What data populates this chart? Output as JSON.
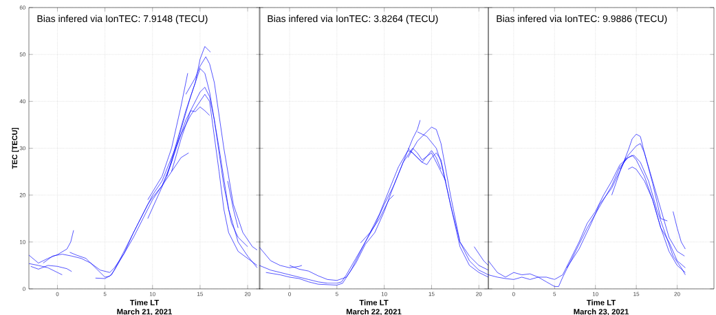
{
  "chart_data": [
    {
      "type": "line",
      "xlabel": "Time LT",
      "ylabel": "TEC [TECU]",
      "annotations": [
        "Bias infered via IonTEC: 7.9148 (TECU)",
        "March 21, 2021"
      ],
      "xlim": [
        -3,
        21.3
      ],
      "ylim": [
        0,
        60
      ],
      "xticks": [
        0,
        5,
        10,
        15,
        20
      ],
      "yticks": [
        0,
        10,
        20,
        30,
        40,
        50,
        60
      ],
      "grid": true,
      "marker": "none",
      "line_style": "solid",
      "series": [
        {
          "color": "#0000ff",
          "x": [
            -3,
            -2,
            -1,
            0,
            1,
            1.4,
            1.7
          ],
          "values": [
            7.2,
            5.5,
            6.5,
            7.3,
            8.5,
            10,
            12.5
          ]
        },
        {
          "color": "#0000ff",
          "x": [
            -3,
            -2,
            -1,
            0,
            0.5
          ],
          "values": [
            5.4,
            5,
            4.5,
            3.5,
            3
          ]
        },
        {
          "color": "#0000ff",
          "x": [
            -2.8,
            -2,
            -1,
            0,
            1,
            1.5
          ],
          "values": [
            4.8,
            4.2,
            5,
            4.8,
            4.3,
            3.7
          ]
        },
        {
          "color": "#0000ff",
          "x": [
            -1.5,
            -0.5,
            0.5,
            1.5,
            2.5,
            3.5,
            4.5,
            5.5,
            6,
            7,
            8,
            9,
            10,
            11,
            12,
            13,
            13.8
          ],
          "values": [
            5.5,
            7,
            7.4,
            7,
            6.5,
            5.5,
            4,
            3.5,
            4.5,
            7.5,
            11,
            15,
            19,
            22,
            25,
            28,
            29
          ]
        },
        {
          "color": "#0000ff",
          "x": [
            1.3,
            2,
            3,
            4,
            5,
            5.5,
            6,
            7,
            8,
            9,
            10,
            11,
            12,
            13,
            14,
            15,
            15.5,
            16,
            17,
            17.5,
            18,
            19,
            20,
            21
          ],
          "values": [
            7.8,
            7.2,
            6.5,
            4.5,
            2.5,
            2.7,
            4,
            7.5,
            12,
            16,
            20,
            23,
            28,
            33,
            37,
            40,
            41.5,
            40,
            25,
            17,
            12,
            8,
            6.5,
            5
          ]
        },
        {
          "color": "#0000ff",
          "x": [
            4,
            5,
            5.7,
            6.5,
            7.5,
            8.5,
            9.5,
            10,
            11,
            12,
            13,
            14,
            15,
            15.5,
            16,
            17,
            18,
            19,
            20,
            21
          ],
          "values": [
            2.3,
            2.2,
            3,
            6,
            10,
            14,
            18,
            19.5,
            22,
            27,
            34,
            41,
            47,
            46,
            42,
            30,
            17,
            10,
            7,
            4.5
          ]
        },
        {
          "color": "#0000ff",
          "x": [
            9.5,
            10.5,
            11.5,
            12.5,
            13.5,
            14,
            14.5,
            15,
            15.5,
            16
          ],
          "values": [
            15,
            19.5,
            24,
            30,
            36,
            38,
            37.8,
            38.8,
            38,
            37
          ]
        },
        {
          "color": "#0000ff",
          "x": [
            11.5,
            12.5,
            13.5,
            14.5,
            15,
            15.5,
            16.1
          ],
          "values": [
            24,
            31,
            38,
            44,
            49,
            51.7,
            50.5
          ]
        },
        {
          "color": "#0000ff",
          "x": [
            13.5,
            14.5,
            15,
            15.6,
            16,
            16.5,
            17.5,
            18.5,
            19.5,
            20.5,
            21
          ],
          "values": [
            41.5,
            45,
            47.5,
            49.5,
            48,
            44,
            30,
            18,
            12,
            9,
            8.3
          ]
        },
        {
          "color": "#0000ff",
          "x": [
            12,
            13,
            14,
            15,
            15.5,
            16,
            16.5,
            17.5,
            18.3,
            19,
            20
          ],
          "values": [
            25,
            32,
            38,
            42,
            43,
            41,
            36,
            22,
            14,
            11,
            9
          ]
        },
        {
          "color": "#0000ff",
          "x": [
            9.5,
            11,
            12,
            13,
            13.7
          ],
          "values": [
            19,
            24,
            30,
            39,
            46
          ]
        },
        {
          "color": "#0000ff",
          "x": [
            17.9,
            18.5,
            19
          ],
          "values": [
            23,
            17,
            13
          ]
        }
      ]
    },
    {
      "type": "line",
      "xlabel": "Time LT",
      "annotations": [
        "Bias infered via IonTEC: 3.8264 (TECU)",
        "March 22, 2021"
      ],
      "xlim": [
        -3.2,
        21
      ],
      "ylim": [
        0,
        60
      ],
      "xticks": [
        0,
        5,
        10,
        15,
        20
      ],
      "yticks": [
        0,
        10,
        20,
        30,
        40,
        50,
        60
      ],
      "tick_labels": "x",
      "grid": true,
      "marker": "none",
      "line_style": "solid",
      "series": [
        {
          "color": "#0000ff",
          "x": [
            -3.2,
            -2,
            -1,
            0,
            1,
            1.3
          ],
          "values": [
            8.9,
            6,
            5,
            4.5,
            4.8,
            5
          ]
        },
        {
          "color": "#0000ff",
          "x": [
            -3.2,
            -2,
            -1,
            0,
            1,
            2,
            3,
            4,
            5,
            5.5,
            6,
            7,
            8,
            9,
            10,
            11,
            12,
            13,
            13.5,
            13.8
          ],
          "values": [
            5,
            4,
            3.5,
            3,
            2.5,
            2,
            1.5,
            1.2,
            1.2,
            1.5,
            3,
            6.5,
            10,
            13.5,
            18,
            22,
            27,
            32,
            34,
            36
          ]
        },
        {
          "color": "#0000ff",
          "x": [
            -2.5,
            -1,
            0,
            1,
            2,
            3,
            4,
            5,
            5.6,
            6.5,
            7.5,
            8.5,
            9.5,
            10.5,
            11.5,
            12.5,
            13,
            14,
            14.5,
            15,
            15.5,
            16,
            17,
            18,
            19,
            20,
            21
          ],
          "values": [
            3.5,
            3,
            2.5,
            2.2,
            1.5,
            1,
            0.9,
            0.8,
            1.2,
            4,
            8,
            12,
            16,
            21,
            26,
            29.5,
            29,
            27,
            26.5,
            28,
            29,
            27.5,
            18,
            9,
            5,
            3.5,
            2.5
          ]
        },
        {
          "color": "#0000ff",
          "x": [
            0,
            1,
            2,
            3,
            4,
            5,
            6,
            7,
            8,
            9,
            10,
            11,
            12,
            13,
            13.5,
            14,
            15,
            16,
            16.5
          ],
          "values": [
            5,
            4.2,
            3.8,
            2.8,
            2,
            1.8,
            2.5,
            5.5,
            9.5,
            12,
            16.5,
            22,
            27,
            30,
            29,
            27.5,
            29,
            25,
            23
          ]
        },
        {
          "color": "#0000ff",
          "x": [
            12.5,
            13.5,
            14.5,
            15,
            15.5,
            16,
            17,
            18,
            19,
            20,
            21
          ],
          "values": [
            28,
            31.5,
            33.5,
            34.5,
            34,
            31,
            20,
            10,
            6,
            4,
            3
          ]
        },
        {
          "color": "#0000ff",
          "x": [
            13.5,
            14.5,
            15.5,
            16,
            17,
            18,
            19,
            20,
            21
          ],
          "values": [
            33.5,
            32.5,
            30,
            27,
            18,
            10,
            7,
            5,
            4
          ]
        },
        {
          "color": "#0000ff",
          "x": [
            12.5,
            13.5,
            14,
            15,
            15.5,
            16
          ],
          "values": [
            30,
            28,
            27,
            29.5,
            28,
            25.5
          ]
        },
        {
          "color": "#0000ff",
          "x": [
            19.5,
            20.5,
            21
          ],
          "values": [
            9,
            6,
            5
          ]
        },
        {
          "color": "#0000ff",
          "x": [
            7.5,
            8.5,
            9.5,
            10.5,
            11
          ],
          "values": [
            9.8,
            12,
            15,
            19,
            20
          ]
        }
      ]
    },
    {
      "type": "line",
      "xlabel": "Time LT",
      "annotations": [
        "Bias infered via IonTEC: 9.9886 (TECU)",
        "March 23, 2021"
      ],
      "xlim": [
        -3.1,
        24.5
      ],
      "ylim": [
        0,
        60
      ],
      "xticks": [
        0,
        5,
        10,
        15,
        20
      ],
      "yticks": [
        0,
        10,
        20,
        30,
        40,
        50,
        60
      ],
      "tick_labels": "x",
      "grid": true,
      "marker": "none",
      "line_style": "solid",
      "series": [
        {
          "color": "#0000ff",
          "x": [
            -3.1,
            -2,
            -1,
            0,
            1,
            2,
            3,
            4,
            5,
            5.5,
            6,
            7,
            8,
            9,
            10,
            11,
            12,
            13,
            14,
            14.7,
            15.5,
            16.5,
            17.5,
            18.5,
            19.5,
            20.5,
            21
          ],
          "values": [
            3,
            2.5,
            2.2,
            2,
            2.5,
            2,
            2.5,
            1.5,
            0.5,
            0.5,
            2.5,
            6,
            9.5,
            13,
            16,
            19,
            22,
            26,
            28,
            28.5,
            27,
            23,
            17,
            12,
            7,
            4.5,
            3
          ]
        },
        {
          "color": "#0000ff",
          "x": [
            -3.1,
            -2,
            -1,
            0,
            1,
            2,
            3,
            4,
            5,
            6,
            7,
            8,
            9,
            10,
            11,
            12,
            13,
            14,
            14.5,
            15,
            16,
            17,
            18,
            19,
            20,
            21
          ],
          "values": [
            6,
            3.5,
            2.5,
            3.5,
            3,
            3.2,
            2.5,
            2.5,
            2,
            3,
            6.5,
            10,
            14,
            16.5,
            20,
            23,
            26.5,
            28,
            28.5,
            27.5,
            24,
            19,
            13,
            10,
            6,
            4.5
          ]
        },
        {
          "color": "#0000ff",
          "x": [
            12,
            13,
            14,
            14.5,
            15,
            15.5,
            16,
            17,
            18,
            19,
            20,
            20.9
          ],
          "values": [
            20,
            25,
            29.5,
            32,
            33,
            32.5,
            29,
            23,
            17,
            11,
            8,
            7
          ]
        },
        {
          "color": "#0000ff",
          "x": [
            13,
            14,
            15,
            15.5,
            16,
            17,
            18,
            18.8
          ],
          "values": [
            25.5,
            28.5,
            30.5,
            31,
            29,
            22.5,
            15,
            14.5
          ]
        },
        {
          "color": "#0000ff",
          "x": [
            14,
            14.5,
            15,
            16,
            17,
            18,
            19,
            20,
            21
          ],
          "values": [
            25.5,
            26,
            25.5,
            23,
            19,
            13,
            8,
            5,
            3.5
          ]
        },
        {
          "color": "#0000ff",
          "x": [
            19.5,
            20,
            20.5,
            21
          ],
          "values": [
            16.5,
            13,
            10,
            8.5
          ]
        },
        {
          "color": "#0000ff",
          "x": [
            6.5,
            8,
            9.5,
            10.5,
            12,
            13.5,
            13.7
          ],
          "values": [
            4.5,
            8.5,
            14,
            18,
            21.5,
            27,
            28
          ]
        }
      ]
    }
  ]
}
